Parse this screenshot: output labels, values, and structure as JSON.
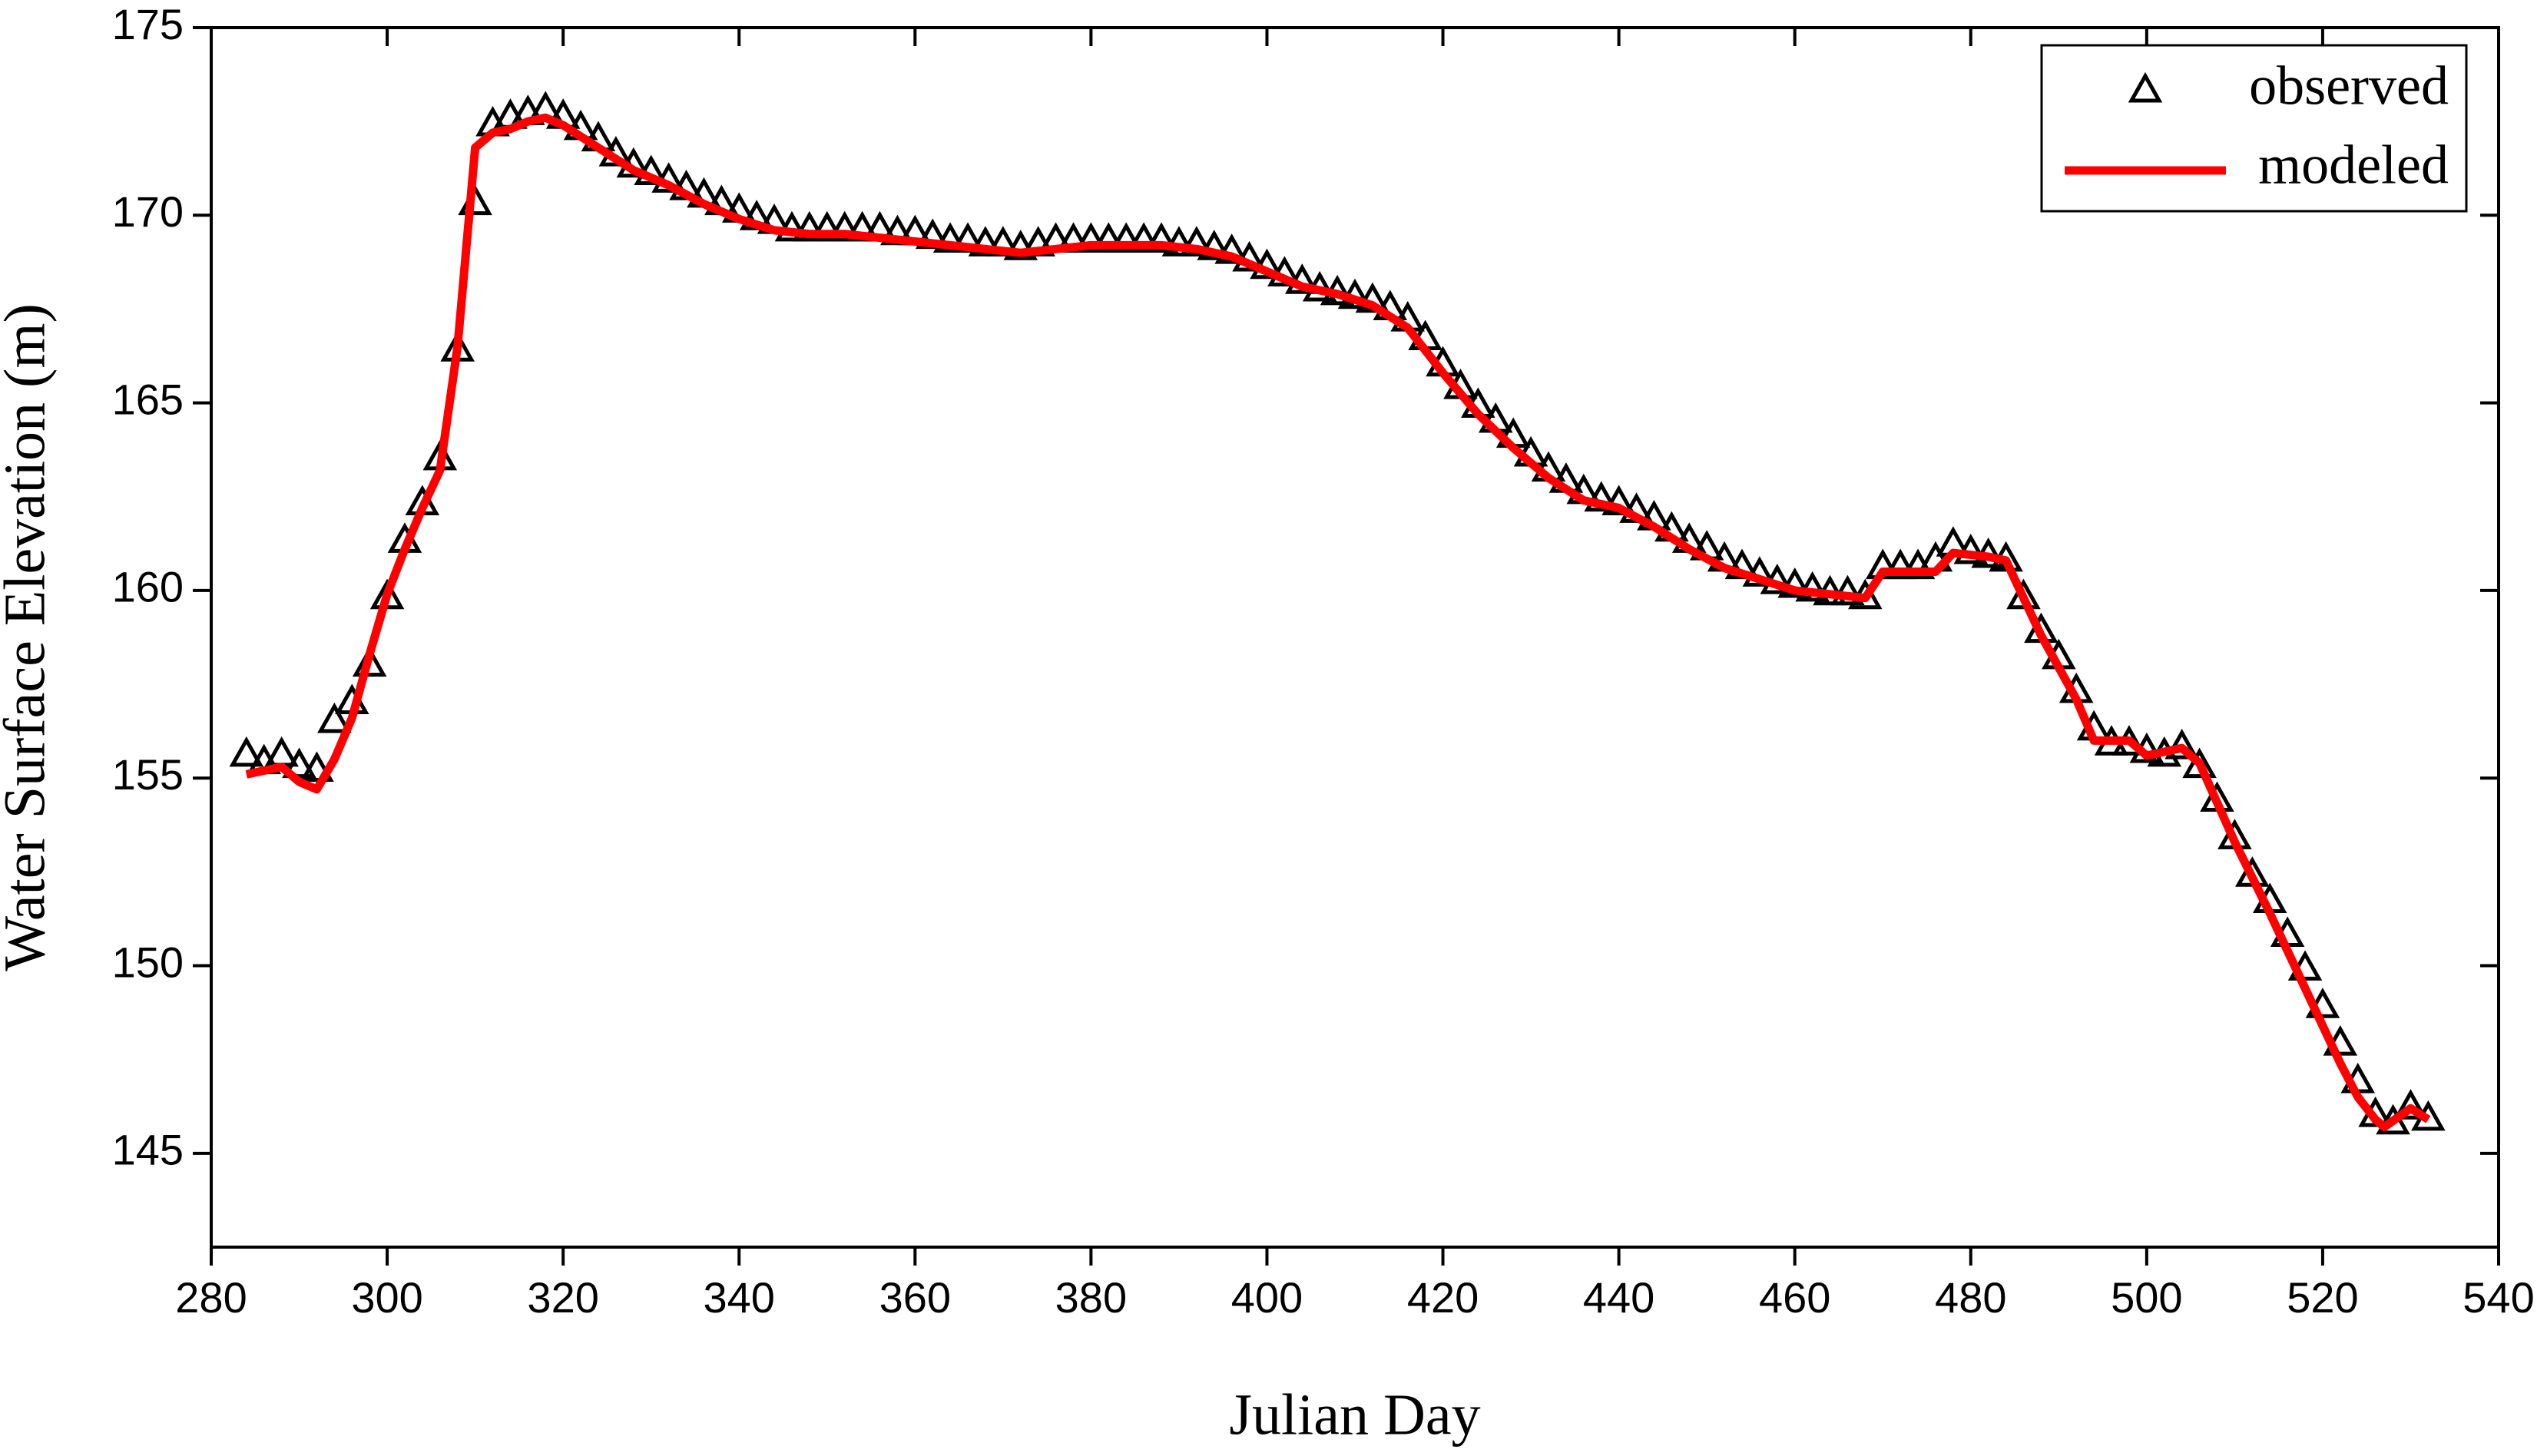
{
  "chart_data": {
    "type": "line",
    "xlabel": "Julian Day",
    "ylabel": "Water Surface Elevation (m)",
    "xlim": [
      280,
      540
    ],
    "ylim": [
      142.5,
      175
    ],
    "xticks": [
      280,
      300,
      320,
      340,
      360,
      380,
      400,
      420,
      440,
      460,
      480,
      500,
      520,
      540
    ],
    "yticks": [
      145,
      150,
      155,
      160,
      165,
      170,
      175
    ],
    "legend": "top-right",
    "series": [
      {
        "name": "observed",
        "color": "#000000",
        "marker": "triangle",
        "x": [
          284,
          286,
          288,
          290,
          292,
          294,
          296,
          298,
          300,
          302,
          304,
          306,
          308,
          310,
          312,
          314,
          316,
          318,
          320,
          322,
          324,
          326,
          328,
          330,
          332,
          334,
          336,
          338,
          340,
          342,
          344,
          346,
          348,
          350,
          352,
          354,
          356,
          358,
          360,
          362,
          364,
          366,
          368,
          370,
          372,
          374,
          376,
          378,
          380,
          382,
          384,
          386,
          388,
          390,
          392,
          394,
          396,
          398,
          400,
          402,
          404,
          406,
          408,
          410,
          412,
          414,
          416,
          418,
          420,
          422,
          424,
          426,
          428,
          430,
          432,
          434,
          436,
          438,
          440,
          442,
          444,
          446,
          448,
          450,
          452,
          454,
          456,
          458,
          460,
          462,
          464,
          466,
          468,
          470,
          472,
          474,
          476,
          478,
          480,
          482,
          484,
          486,
          488,
          490,
          492,
          494,
          496,
          498,
          500,
          502,
          504,
          506,
          508,
          510,
          512,
          514,
          516,
          518,
          520,
          522,
          524,
          526,
          528,
          530,
          532
        ],
        "values": [
          155.6,
          155.4,
          155.6,
          155.3,
          155.2,
          156.5,
          157,
          158,
          159.8,
          161.3,
          162.3,
          163.5,
          166.4,
          170.3,
          172.4,
          172.6,
          172.7,
          172.8,
          172.6,
          172.3,
          172,
          171.6,
          171.3,
          171.1,
          170.9,
          170.7,
          170.5,
          170.3,
          170.1,
          169.9,
          169.8,
          169.6,
          169.6,
          169.6,
          169.6,
          169.6,
          169.6,
          169.5,
          169.5,
          169.4,
          169.3,
          169.3,
          169.2,
          169.2,
          169.1,
          169.2,
          169.3,
          169.3,
          169.3,
          169.3,
          169.3,
          169.3,
          169.3,
          169.2,
          169.2,
          169.1,
          169,
          168.8,
          168.6,
          168.4,
          168.2,
          168,
          167.9,
          167.8,
          167.7,
          167.5,
          167.2,
          166.7,
          166,
          165.4,
          164.9,
          164.5,
          164.1,
          163.6,
          163.2,
          162.9,
          162.6,
          162.4,
          162.3,
          162.1,
          161.9,
          161.6,
          161.3,
          161.1,
          160.8,
          160.6,
          160.4,
          160.2,
          160.1,
          160,
          159.9,
          159.9,
          159.8,
          160.6,
          160.6,
          160.6,
          160.8,
          161.2,
          161,
          160.9,
          160.8,
          159.8,
          158.9,
          158.2,
          157.3,
          156.3,
          155.9,
          155.9,
          155.7,
          155.6,
          155.8,
          155.3,
          154.4,
          153.4,
          152.4,
          151.7,
          150.8,
          149.9,
          148.9,
          147.9,
          146.9,
          146,
          145.8,
          146.2,
          145.9
        ]
      },
      {
        "name": "modeled",
        "color": "#ff0000",
        "marker": "line",
        "x": [
          284,
          286,
          288,
          290,
          292,
          294,
          296,
          298,
          300,
          302,
          304,
          306,
          308,
          310,
          312,
          314,
          316,
          318,
          320,
          324,
          328,
          332,
          336,
          340,
          344,
          348,
          352,
          356,
          360,
          364,
          368,
          372,
          376,
          380,
          384,
          388,
          392,
          396,
          400,
          404,
          408,
          412,
          416,
          420,
          424,
          428,
          432,
          436,
          440,
          444,
          448,
          452,
          456,
          460,
          464,
          468,
          470,
          474,
          476,
          478,
          482,
          484,
          488,
          492,
          494,
          498,
          500,
          502,
          504,
          506,
          510,
          514,
          518,
          522,
          524,
          526,
          527,
          530,
          532
        ],
        "values": [
          155.1,
          155.2,
          155.3,
          154.9,
          154.7,
          155.5,
          156.6,
          158.3,
          159.9,
          161.1,
          162.2,
          163.2,
          166.5,
          171.8,
          172.2,
          172.3,
          172.5,
          172.6,
          172.4,
          171.8,
          171.2,
          170.8,
          170.3,
          169.9,
          169.6,
          169.5,
          169.5,
          169.4,
          169.3,
          169.2,
          169.1,
          169,
          169.1,
          169.2,
          169.2,
          169.2,
          169.1,
          168.9,
          168.5,
          168.1,
          167.9,
          167.6,
          167,
          165.8,
          164.7,
          163.8,
          163,
          162.4,
          162.2,
          161.7,
          161.1,
          160.6,
          160.3,
          160,
          159.9,
          159.8,
          160.5,
          160.5,
          160.5,
          161,
          160.9,
          160.8,
          158.8,
          157.1,
          156,
          156,
          155.6,
          155.7,
          155.8,
          155.4,
          153.3,
          151.4,
          149.4,
          147.4,
          146.5,
          145.9,
          145.7,
          146.2,
          145.9
        ]
      }
    ]
  }
}
